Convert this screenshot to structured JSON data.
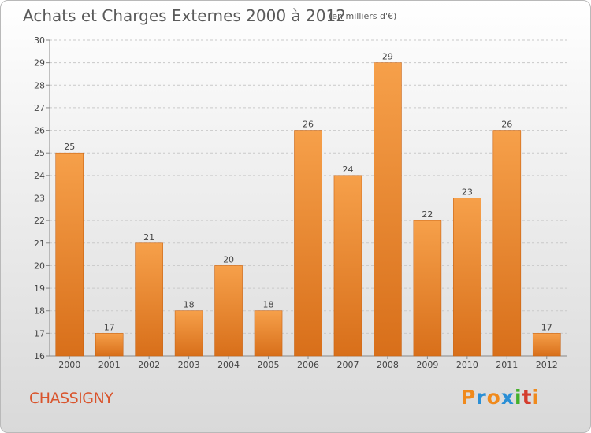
{
  "title": "Achats et Charges Externes 2000 à 2012",
  "unit": "(en milliers d'€)",
  "town": "CHASSIGNY",
  "logo": {
    "letters": [
      "P",
      "r",
      "o",
      "x",
      "i",
      "t",
      "i"
    ],
    "colors": [
      "#f08a1c",
      "#2a8fd6",
      "#f08a1c",
      "#2a8fd6",
      "#43b02a",
      "#d43c2d",
      "#f08a1c"
    ]
  },
  "colors": {
    "bar_top": "#f6a04a",
    "bar_bottom": "#d86f1a",
    "grid": "#c9c9c9"
  },
  "chart_data": {
    "type": "bar",
    "title": "Achats et Charges Externes 2000 à 2012",
    "categories": [
      "2000",
      "2001",
      "2002",
      "2003",
      "2004",
      "2005",
      "2006",
      "2007",
      "2008",
      "2009",
      "2010",
      "2011",
      "2012"
    ],
    "values": [
      25,
      17,
      21,
      18,
      20,
      18,
      26,
      24,
      29,
      22,
      23,
      26,
      17
    ],
    "ylim": [
      16,
      30
    ],
    "yticks": [
      16,
      17,
      18,
      19,
      20,
      21,
      22,
      23,
      24,
      25,
      26,
      27,
      28,
      29,
      30
    ],
    "xlabel": "",
    "ylabel": "",
    "grid": "horizontal dashed",
    "legend": "none"
  }
}
